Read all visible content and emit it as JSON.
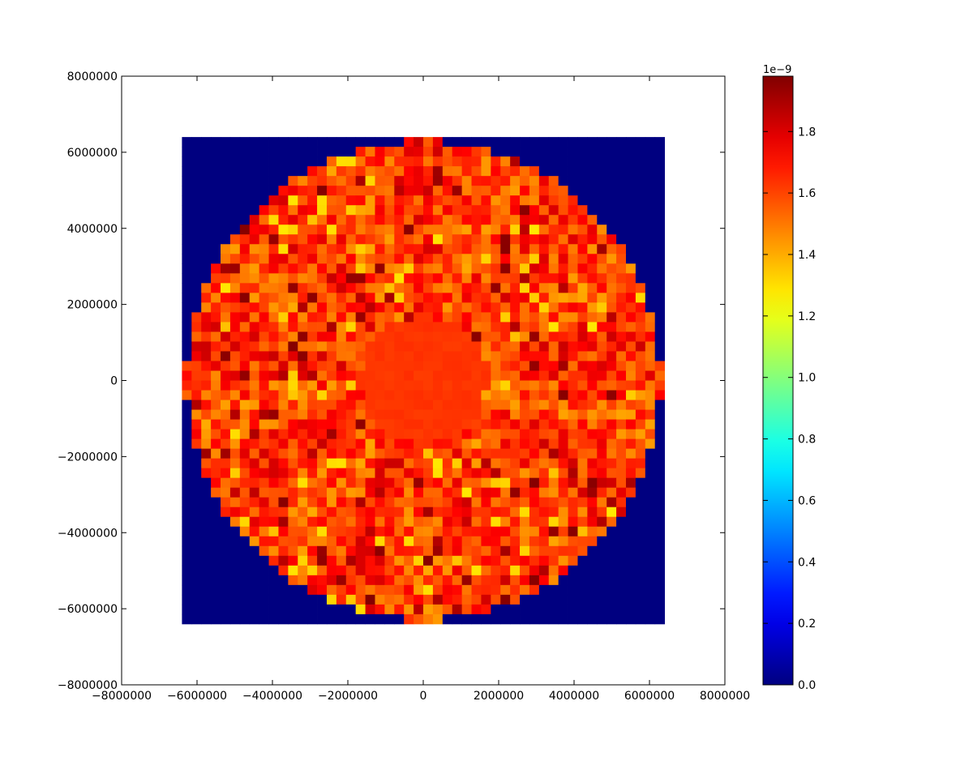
{
  "chart_data": {
    "type": "heatmap",
    "title": "",
    "xlabel": "",
    "ylabel": "",
    "xlim": [
      -8000000,
      8000000
    ],
    "ylim": [
      -8000000,
      8000000
    ],
    "data_extent": [
      -6400000,
      6400000,
      -6400000,
      6400000
    ],
    "grid_shape": [
      50,
      50
    ],
    "disk_radius": 6300000,
    "outside_value": 0.0,
    "x_ticks": [
      {
        "value": -8000000,
        "label": "−8000000"
      },
      {
        "value": -6000000,
        "label": "−6000000"
      },
      {
        "value": -4000000,
        "label": "−4000000"
      },
      {
        "value": -2000000,
        "label": "−2000000"
      },
      {
        "value": 0,
        "label": "0"
      },
      {
        "value": 2000000,
        "label": "2000000"
      },
      {
        "value": 4000000,
        "label": "4000000"
      },
      {
        "value": 6000000,
        "label": "6000000"
      },
      {
        "value": 8000000,
        "label": "8000000"
      }
    ],
    "y_ticks": [
      {
        "value": 8000000,
        "label": "8000000"
      },
      {
        "value": 6000000,
        "label": "6000000"
      },
      {
        "value": 4000000,
        "label": "4000000"
      },
      {
        "value": 2000000,
        "label": "2000000"
      },
      {
        "value": 0,
        "label": "0"
      },
      {
        "value": -2000000,
        "label": "−2000000"
      },
      {
        "value": -4000000,
        "label": "−4000000"
      },
      {
        "value": -6000000,
        "label": "−6000000"
      },
      {
        "value": -8000000,
        "label": "−8000000"
      }
    ],
    "approx_value_range_inside": [
      1.25,
      1.98
    ],
    "colorbar": {
      "colormap": "jet",
      "range": [
        0.0,
        1.98
      ],
      "scale_label": "1e−9",
      "ticks": [
        {
          "value": 0.0,
          "label": "0.0"
        },
        {
          "value": 0.2,
          "label": "0.2"
        },
        {
          "value": 0.4,
          "label": "0.4"
        },
        {
          "value": 0.6,
          "label": "0.6"
        },
        {
          "value": 0.8,
          "label": "0.8"
        },
        {
          "value": 1.0,
          "label": "1.0"
        },
        {
          "value": 1.2,
          "label": "1.2"
        },
        {
          "value": 1.4,
          "label": "1.4"
        },
        {
          "value": 1.6,
          "label": "1.6"
        },
        {
          "value": 1.8,
          "label": "1.8"
        }
      ]
    }
  }
}
